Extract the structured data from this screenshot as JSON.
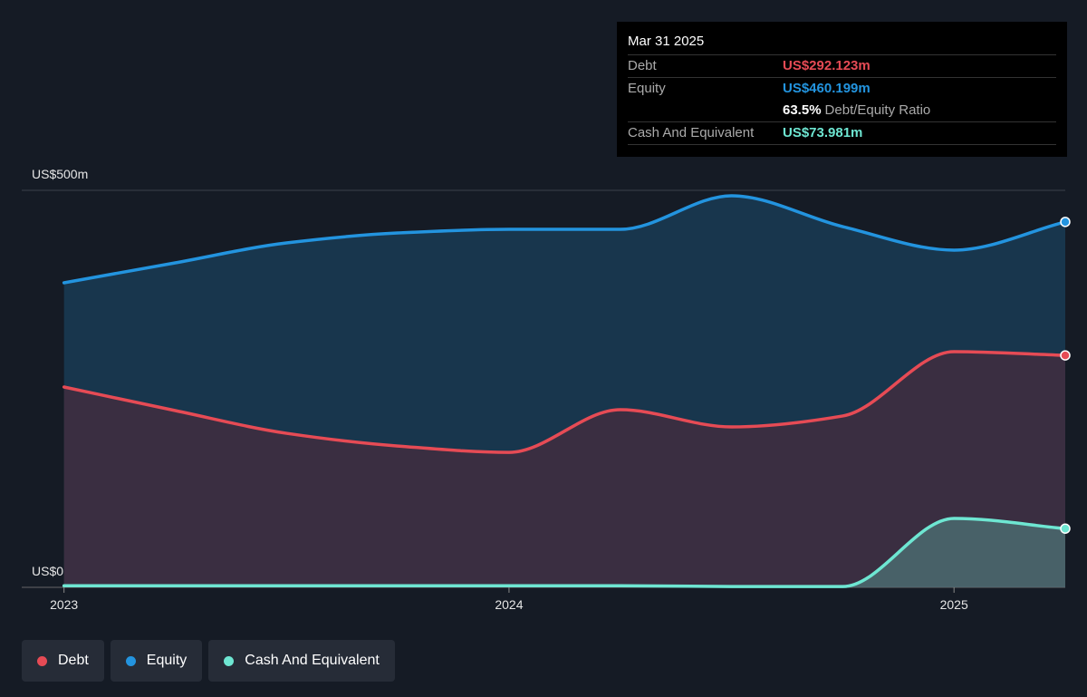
{
  "chart_data": {
    "type": "area",
    "x": [
      2023.0,
      2023.25,
      2023.5,
      2023.75,
      2024.0,
      2024.25,
      2024.5,
      2024.75,
      2025.0,
      2025.25
    ],
    "series": [
      {
        "name": "Equity",
        "color": "#2394df",
        "values": [
          383.6,
          408.7,
          433.8,
          446.3,
          450.9,
          450.9,
          493.2,
          454.3,
          424.7,
          460.199
        ]
      },
      {
        "name": "Debt",
        "color": "#e64b55",
        "values": [
          252.3,
          222.6,
          194.0,
          178.0,
          170.0,
          223.7,
          202.0,
          215.8,
          296.8,
          292.123
        ]
      },
      {
        "name": "Cash And Equivalent",
        "color": "#6ee6d2",
        "values": [
          2,
          2,
          2,
          2,
          2,
          2,
          1,
          1,
          86.8,
          73.981
        ]
      }
    ],
    "legend": [
      "Debt",
      "Equity",
      "Cash And Equivalent"
    ],
    "xlim": [
      2022.905,
      2025.25
    ],
    "xticks": [
      2023,
      2024,
      2025
    ],
    "ylim": [
      0,
      500
    ],
    "yticks": [
      {
        "value": 0,
        "label": "US$0"
      },
      {
        "value": 500,
        "label": "US$500m"
      }
    ],
    "grid": true,
    "tooltip": {
      "date": "Mar 31 2025",
      "rows": [
        {
          "label": "Debt",
          "value": "US$292.123m"
        },
        {
          "label": "Equity",
          "value": "US$460.199m"
        }
      ],
      "ratio": "63.5%",
      "ratio_label": "Debt/Equity Ratio",
      "cash": {
        "label": "Cash And Equivalent",
        "value": "US$73.981m"
      }
    }
  }
}
